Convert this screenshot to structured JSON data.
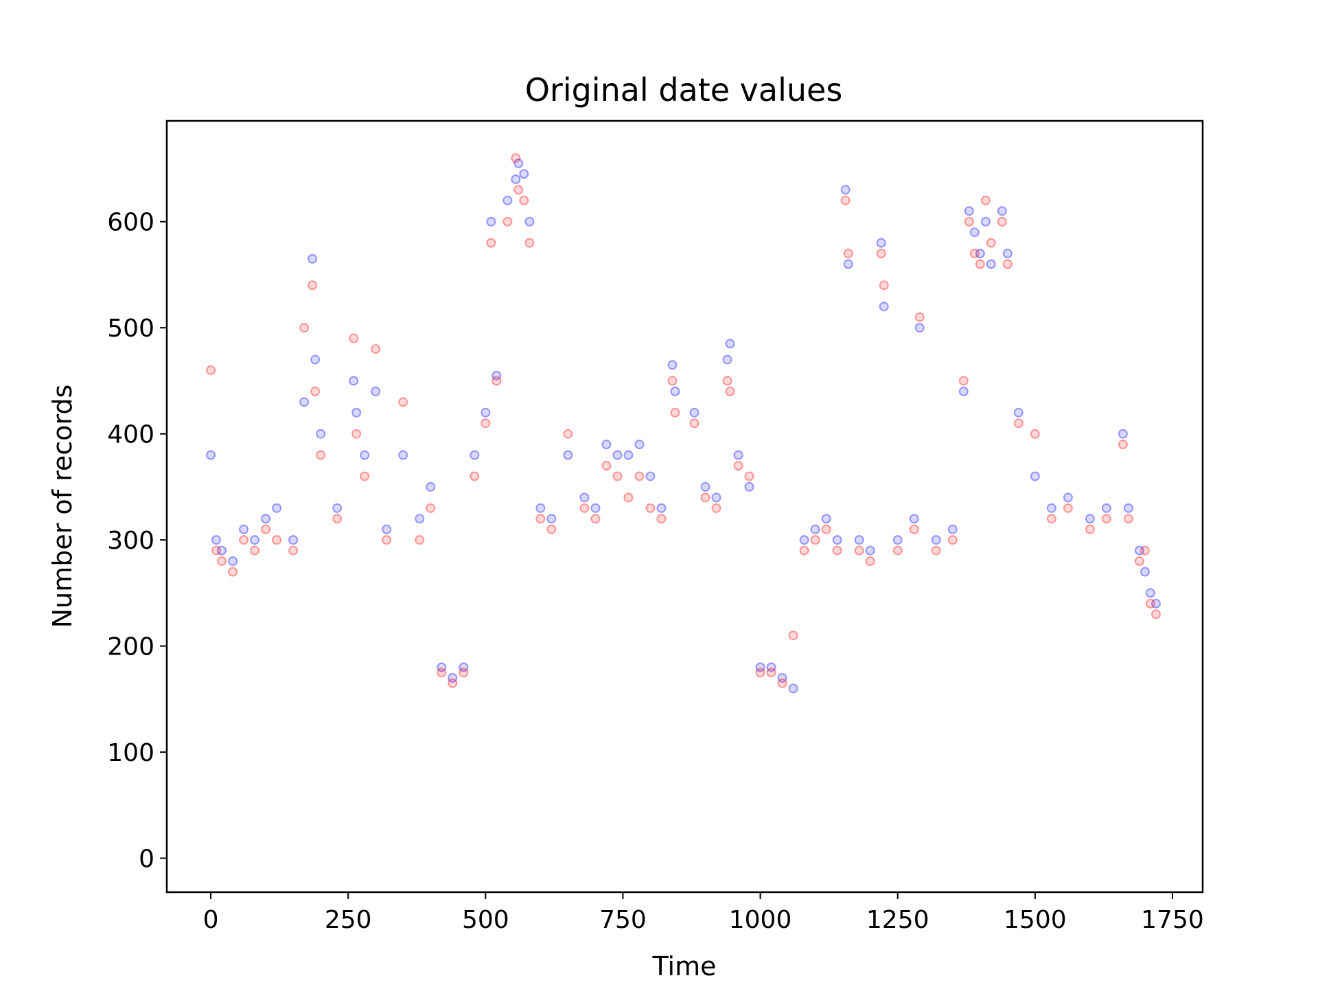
{
  "chart_data": {
    "type": "scatter",
    "title": "Original date values",
    "xlabel": "Time",
    "ylabel": "Number of records",
    "xlim": [
      -80,
      1805
    ],
    "ylim": [
      -32,
      695
    ],
    "xticks": [
      0,
      250,
      500,
      750,
      1000,
      1250,
      1500,
      1750
    ],
    "yticks": [
      0,
      100,
      200,
      300,
      400,
      500,
      600
    ],
    "grid": false,
    "legend": "none",
    "marker": "hollow-circle",
    "alpha": 0.15,
    "series": [
      {
        "color": "#0000ff",
        "x": [
          0,
          10,
          20,
          40,
          60,
          80,
          100,
          120,
          150,
          170,
          185,
          190,
          200,
          230,
          260,
          265,
          280,
          300,
          320,
          350,
          380,
          400,
          420,
          440,
          460,
          480,
          500,
          510,
          520,
          540,
          555,
          560,
          570,
          580,
          600,
          620,
          650,
          680,
          700,
          720,
          740,
          760,
          780,
          800,
          820,
          840,
          845,
          880,
          900,
          920,
          940,
          945,
          960,
          980,
          1000,
          1020,
          1040,
          1060,
          1080,
          1100,
          1120,
          1140,
          1155,
          1160,
          1180,
          1200,
          1220,
          1225,
          1250,
          1280,
          1290,
          1320,
          1350,
          1370,
          1380,
          1390,
          1400,
          1410,
          1420,
          1440,
          1450,
          1470,
          1500,
          1530,
          1560,
          1600,
          1630,
          1660,
          1670,
          1690,
          1700,
          1710,
          1720
        ],
        "y": [
          380,
          300,
          290,
          280,
          310,
          300,
          320,
          330,
          300,
          430,
          565,
          470,
          400,
          330,
          450,
          420,
          380,
          440,
          310,
          380,
          320,
          350,
          180,
          170,
          180,
          380,
          420,
          600,
          455,
          620,
          640,
          655,
          645,
          600,
          330,
          320,
          380,
          340,
          330,
          390,
          380,
          380,
          390,
          360,
          330,
          465,
          440,
          420,
          350,
          340,
          470,
          485,
          380,
          350,
          180,
          180,
          170,
          160,
          300,
          310,
          320,
          300,
          630,
          560,
          300,
          290,
          580,
          520,
          300,
          320,
          500,
          300,
          310,
          440,
          610,
          590,
          570,
          600,
          560,
          610,
          570,
          420,
          360,
          330,
          340,
          320,
          330,
          400,
          330,
          290,
          270,
          250,
          240
        ]
      },
      {
        "color": "#ff0000",
        "x": [
          0,
          10,
          20,
          40,
          60,
          80,
          100,
          120,
          150,
          170,
          185,
          190,
          200,
          230,
          260,
          265,
          280,
          300,
          320,
          350,
          380,
          400,
          420,
          440,
          460,
          480,
          500,
          510,
          520,
          540,
          555,
          560,
          570,
          580,
          600,
          620,
          650,
          680,
          700,
          720,
          740,
          760,
          780,
          800,
          820,
          840,
          845,
          880,
          900,
          920,
          940,
          945,
          960,
          980,
          1000,
          1020,
          1040,
          1060,
          1080,
          1100,
          1120,
          1140,
          1155,
          1160,
          1180,
          1200,
          1220,
          1225,
          1250,
          1280,
          1290,
          1320,
          1350,
          1370,
          1380,
          1390,
          1400,
          1410,
          1420,
          1440,
          1450,
          1470,
          1500,
          1530,
          1560,
          1600,
          1630,
          1660,
          1670,
          1690,
          1700,
          1710,
          1720
        ],
        "y": [
          460,
          290,
          280,
          270,
          300,
          290,
          310,
          300,
          290,
          500,
          540,
          440,
          380,
          320,
          490,
          400,
          360,
          480,
          300,
          430,
          300,
          330,
          175,
          165,
          175,
          360,
          410,
          580,
          450,
          600,
          660,
          630,
          620,
          580,
          320,
          310,
          400,
          330,
          320,
          370,
          360,
          340,
          360,
          330,
          320,
          450,
          420,
          410,
          340,
          330,
          450,
          440,
          370,
          360,
          175,
          175,
          165,
          210,
          290,
          300,
          310,
          290,
          620,
          570,
          290,
          280,
          570,
          540,
          290,
          310,
          510,
          290,
          300,
          450,
          600,
          570,
          560,
          620,
          580,
          600,
          560,
          410,
          400,
          320,
          330,
          310,
          320,
          390,
          320,
          280,
          290,
          240,
          230
        ]
      }
    ]
  }
}
